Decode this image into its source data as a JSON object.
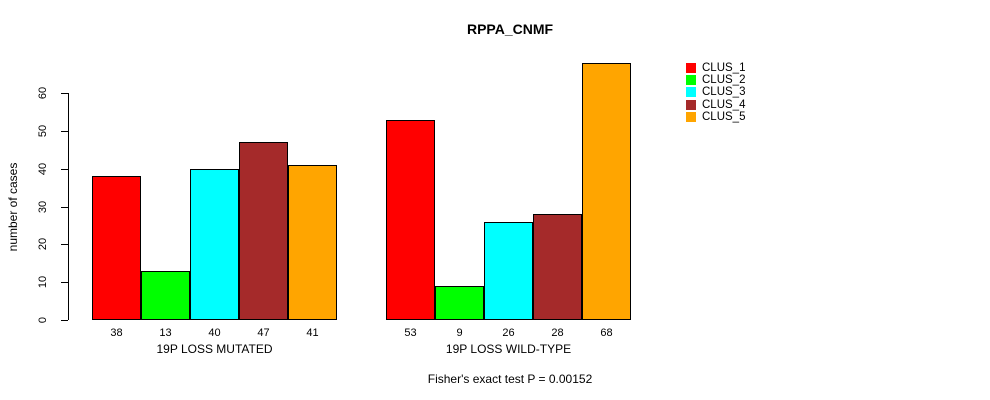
{
  "chart_data": {
    "type": "bar",
    "title": "RPPA_CNMF",
    "ylabel": "number of cases",
    "xlabel": "",
    "categories": [
      "19P LOSS MUTATED",
      "19P LOSS WILD-TYPE"
    ],
    "series": [
      {
        "name": "CLUS_1",
        "color": "#FF0000",
        "values": [
          38,
          53
        ]
      },
      {
        "name": "CLUS_2",
        "color": "#00FF00",
        "values": [
          13,
          9
        ]
      },
      {
        "name": "CLUS_3",
        "color": "#00FFFF",
        "values": [
          40,
          26
        ]
      },
      {
        "name": "CLUS_4",
        "color": "#A52A2A",
        "values": [
          47,
          28
        ]
      },
      {
        "name": "CLUS_5",
        "color": "#FFA500",
        "values": [
          41,
          68
        ]
      }
    ],
    "bar_value_labels": [
      [
        38,
        13,
        40,
        47,
        41
      ],
      [
        53,
        9,
        26,
        28,
        68
      ]
    ],
    "yticks": [
      0,
      10,
      20,
      30,
      40,
      50,
      60
    ],
    "ylim": [
      0,
      68
    ],
    "grid": false,
    "legend_position": "right",
    "legend_entries": [
      "CLUS_1",
      "CLUS_2",
      "CLUS_3",
      "CLUS_4",
      "CLUS_5"
    ],
    "annotation": "Fisher's exact test P = 0.00152",
    "colors": {
      "CLUS_1": "#FF0000",
      "CLUS_2": "#00FF00",
      "CLUS_3": "#00FFFF",
      "CLUS_4": "#A52A2A",
      "CLUS_5": "#FFA500",
      "axis": "#000000",
      "background": "#FFFFFF"
    }
  }
}
